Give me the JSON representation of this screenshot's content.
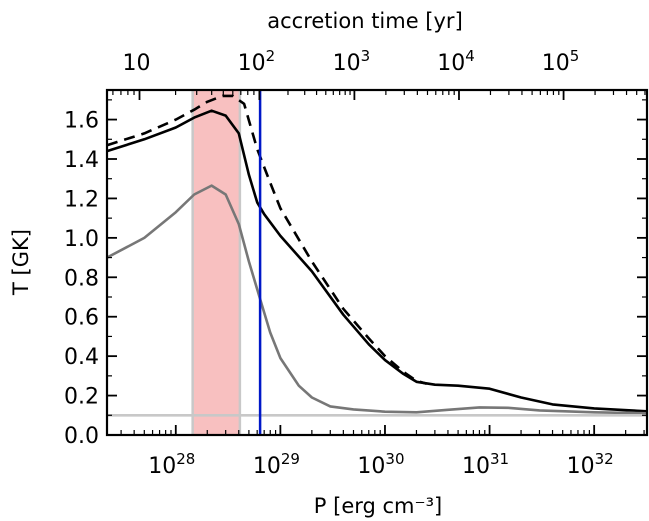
{
  "chart_data": {
    "type": "line",
    "xlabel": "P [erg cm⁻³]",
    "ylabel": "T [GK]",
    "top_xlabel": "accretion time [yr]",
    "x_scale": "log",
    "xlim": [
      2.2e+27,
      3.2e+32
    ],
    "ylim": [
      0.0,
      1.75
    ],
    "grid": false,
    "x_ticks": [
      {
        "value": 1e+28,
        "label": "10",
        "exp": "28"
      },
      {
        "value": 1e+29,
        "label": "10",
        "exp": "29"
      },
      {
        "value": 1e+30,
        "label": "10",
        "exp": "30"
      },
      {
        "value": 1e+31,
        "label": "10",
        "exp": "31"
      },
      {
        "value": 1e+32,
        "label": "10",
        "exp": "32"
      }
    ],
    "y_ticks": [
      "0.0",
      "0.2",
      "0.4",
      "0.6",
      "0.8",
      "1.0",
      "1.2",
      "1.4",
      "1.6"
    ],
    "top_ticks": [
      {
        "pressure": 4.5e+27,
        "label": "10",
        "exp": ""
      },
      {
        "pressure": 6.3e+28,
        "label": "10",
        "exp": "2"
      },
      {
        "pressure": 5.1e+29,
        "label": "10",
        "exp": "3"
      },
      {
        "pressure": 5.1e+30,
        "label": "10",
        "exp": "4"
      },
      {
        "pressure": 5.1e+31,
        "label": "10",
        "exp": "5"
      }
    ],
    "shaded_band": {
      "x_from": 1.45e+28,
      "x_to": 4.1e+28,
      "color": "#f8c0c0",
      "edge_color": "#c8c8c8"
    },
    "vertical_line": {
      "x": 6.4e+28,
      "color": "#0018c8"
    },
    "series": [
      {
        "style": "solid",
        "color": "#000000",
        "points": [
          [
            2.2e+27,
            1.44
          ],
          [
            5e+27,
            1.5
          ],
          [
            1e+28,
            1.56
          ],
          [
            1.5e+28,
            1.61
          ],
          [
            2.2e+28,
            1.645
          ],
          [
            3e+28,
            1.62
          ],
          [
            4e+28,
            1.53
          ],
          [
            5e+28,
            1.32
          ],
          [
            6e+28,
            1.18
          ],
          [
            7e+28,
            1.12
          ],
          [
            1e+29,
            1.01
          ],
          [
            2e+29,
            0.83
          ],
          [
            4e+29,
            0.61
          ],
          [
            7e+29,
            0.46
          ],
          [
            1e+30,
            0.38
          ],
          [
            1.5e+30,
            0.31
          ],
          [
            2e+30,
            0.27
          ],
          [
            3e+30,
            0.255
          ],
          [
            5e+30,
            0.25
          ],
          [
            1e+31,
            0.235
          ],
          [
            2e+31,
            0.19
          ],
          [
            4e+31,
            0.155
          ],
          [
            1e+32,
            0.135
          ],
          [
            3.2e+32,
            0.12
          ]
        ]
      },
      {
        "style": "dashed",
        "color": "#000000",
        "points": [
          [
            2.2e+27,
            1.47
          ],
          [
            5e+27,
            1.53
          ],
          [
            1e+28,
            1.6
          ],
          [
            1.5e+28,
            1.65
          ],
          [
            2e+28,
            1.69
          ],
          [
            2.8e+28,
            1.72
          ],
          [
            3.5e+28,
            1.72
          ],
          [
            4.5e+28,
            1.68
          ],
          [
            6e+28,
            1.45
          ],
          [
            8e+28,
            1.28
          ],
          [
            1e+29,
            1.15
          ],
          [
            2e+29,
            0.88
          ],
          [
            4e+29,
            0.64
          ],
          [
            7e+29,
            0.49
          ],
          [
            1e+30,
            0.4
          ],
          [
            1.5e+30,
            0.32
          ],
          [
            2e+30,
            0.275
          ],
          [
            2.5e+30,
            0.26
          ]
        ]
      },
      {
        "style": "solid",
        "color": "#777777",
        "points": [
          [
            2.2e+27,
            0.9
          ],
          [
            5e+27,
            1.0
          ],
          [
            1e+28,
            1.13
          ],
          [
            1.5e+28,
            1.22
          ],
          [
            2.2e+28,
            1.265
          ],
          [
            3e+28,
            1.22
          ],
          [
            4e+28,
            1.07
          ],
          [
            5e+28,
            0.88
          ],
          [
            6.4e+28,
            0.69
          ],
          [
            8e+28,
            0.52
          ],
          [
            1e+29,
            0.39
          ],
          [
            1.5e+29,
            0.25
          ],
          [
            2e+29,
            0.19
          ],
          [
            3e+29,
            0.145
          ],
          [
            5e+29,
            0.13
          ],
          [
            1e+30,
            0.118
          ],
          [
            2e+30,
            0.115
          ],
          [
            4e+30,
            0.128
          ],
          [
            8e+30,
            0.14
          ],
          [
            1.5e+31,
            0.138
          ],
          [
            3e+31,
            0.125
          ],
          [
            1e+32,
            0.115
          ],
          [
            3.2e+32,
            0.11
          ]
        ]
      },
      {
        "style": "solid",
        "color": "#c8c8c8",
        "points": [
          [
            2.2e+27,
            0.1
          ],
          [
            3.2e+32,
            0.1
          ]
        ]
      }
    ]
  }
}
